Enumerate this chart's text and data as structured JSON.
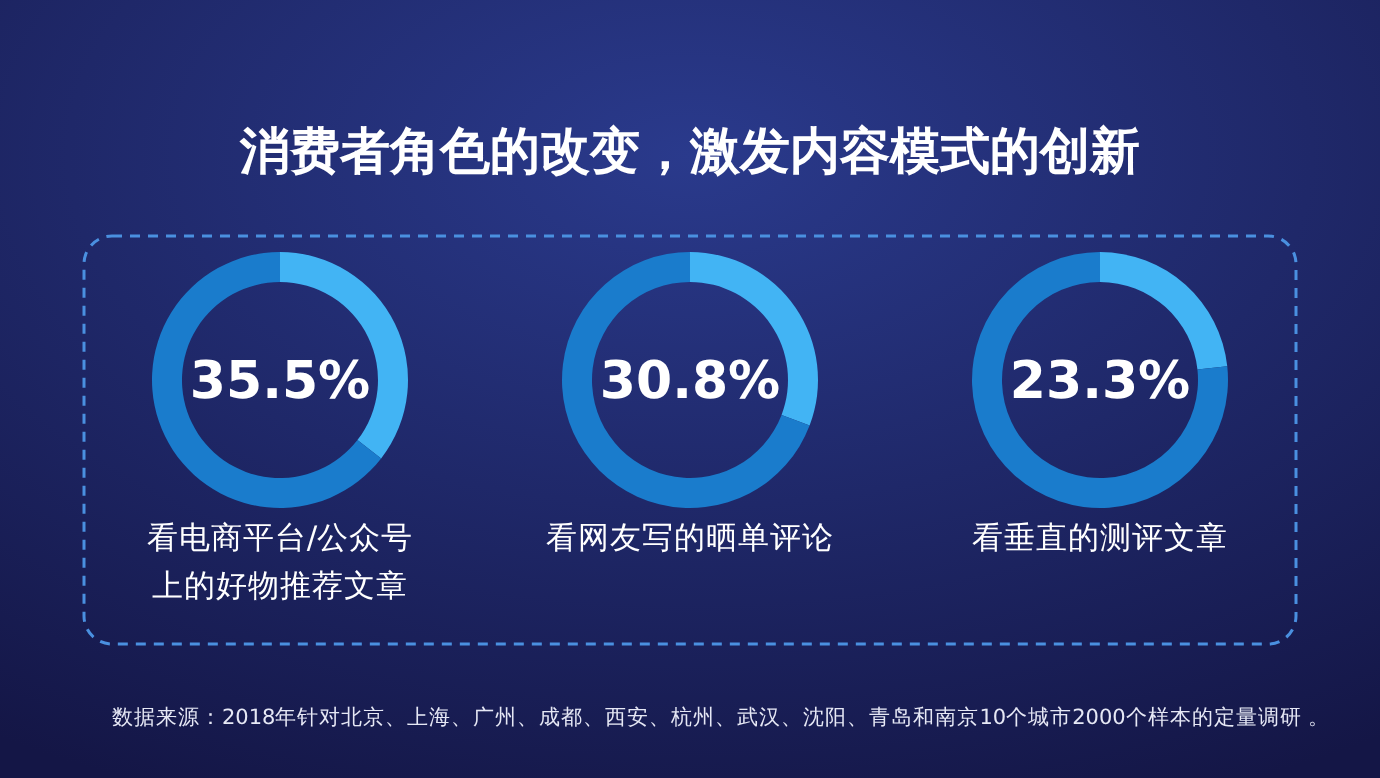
{
  "chart_data": [
    {
      "type": "donut",
      "title": "消费者角色的改变，激发内容模式的创新",
      "xlabel": "看电商平台/公众号上的好物推荐文章",
      "categories": [
        null,
        null
      ],
      "values": [
        35.5,
        64.5
      ],
      "colors": [
        "#42b4f4",
        "#1a7ccc"
      ],
      "annotations": [
        "35.5%"
      ]
    },
    {
      "type": "donut",
      "xlabel": "看网友写的晒单评论",
      "categories": [
        null,
        null
      ],
      "values": [
        30.8,
        69.2
      ],
      "colors": [
        "#42b4f4",
        "#1a7ccc"
      ],
      "annotations": [
        "30.8%"
      ]
    },
    {
      "type": "donut",
      "xlabel": "看垂直的测评文章",
      "categories": [
        null,
        null
      ],
      "values": [
        23.3,
        76.7
      ],
      "colors": [
        "#42b4f4",
        "#1a7ccc"
      ],
      "annotations": [
        "23.3%",
        "数据来源：2018年针对北京、上海、广州、成都、西安、杭州、武汉、沈阳、青岛和南京10个城市2000个样本的定量调研 。"
      ]
    }
  ]
}
